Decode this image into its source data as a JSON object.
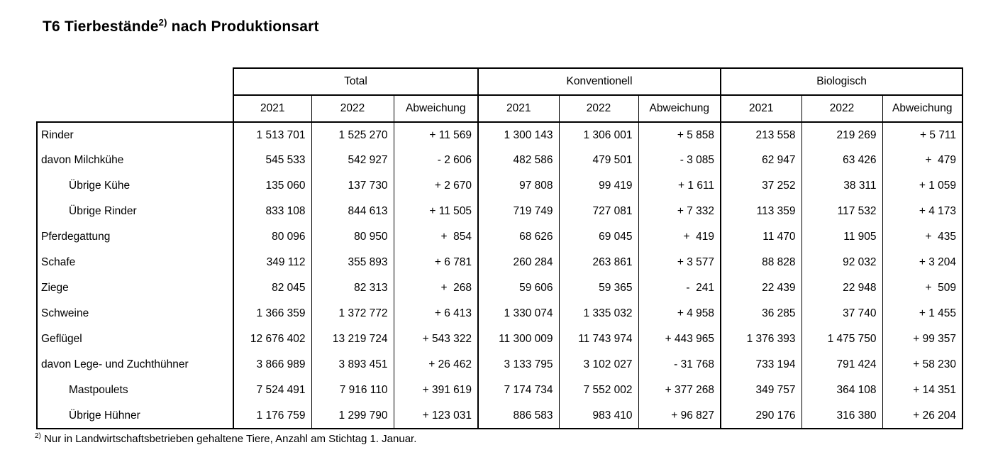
{
  "title": {
    "prefix": "T6 Tierbestände",
    "sup": "2)",
    "suffix": " nach Produktionsart"
  },
  "colors": {
    "text": "#000000",
    "background": "#ffffff",
    "border": "#000000"
  },
  "table": {
    "group_headers": [
      "Total",
      "Konventionell",
      "Biologisch"
    ],
    "sub_headers": [
      "2021",
      "2022",
      "Abweichung"
    ],
    "rows": [
      {
        "label": "Rinder",
        "indent": false,
        "values": [
          "1 513 701",
          "1 525 270",
          "+ 11 569",
          "1 300 143",
          "1 306 001",
          "+ 5 858",
          "213 558",
          "219 269",
          "+ 5 711"
        ]
      },
      {
        "label": "davon Milchkühe",
        "indent": false,
        "values": [
          "545 533",
          "542 927",
          "- 2 606",
          "482 586",
          "479 501",
          "- 3 085",
          "62 947",
          "63 426",
          "+  479"
        ]
      },
      {
        "label": "Übrige Kühe",
        "indent": true,
        "values": [
          "135 060",
          "137 730",
          "+ 2 670",
          "97 808",
          "99 419",
          "+ 1 611",
          "37 252",
          "38 311",
          "+ 1 059"
        ]
      },
      {
        "label": "Übrige Rinder",
        "indent": true,
        "values": [
          "833 108",
          "844 613",
          "+ 11 505",
          "719 749",
          "727 081",
          "+ 7 332",
          "113 359",
          "117 532",
          "+ 4 173"
        ]
      },
      {
        "label": "Pferdegattung",
        "indent": false,
        "values": [
          "80 096",
          "80 950",
          "+  854",
          "68 626",
          "69 045",
          "+  419",
          "11 470",
          "11 905",
          "+  435"
        ]
      },
      {
        "label": "Schafe",
        "indent": false,
        "values": [
          "349 112",
          "355 893",
          "+ 6 781",
          "260 284",
          "263 861",
          "+ 3 577",
          "88 828",
          "92 032",
          "+ 3 204"
        ]
      },
      {
        "label": "Ziege",
        "indent": false,
        "values": [
          "82 045",
          "82 313",
          "+  268",
          "59 606",
          "59 365",
          "-  241",
          "22 439",
          "22 948",
          "+  509"
        ]
      },
      {
        "label": "Schweine",
        "indent": false,
        "values": [
          "1 366 359",
          "1 372 772",
          "+ 6 413",
          "1 330 074",
          "1 335 032",
          "+ 4 958",
          "36 285",
          "37 740",
          "+ 1 455"
        ]
      },
      {
        "label": "Geflügel",
        "indent": false,
        "values": [
          "12 676 402",
          "13 219 724",
          "+ 543 322",
          "11 300 009",
          "11 743 974",
          "+ 443 965",
          "1 376 393",
          "1 475 750",
          "+ 99 357"
        ]
      },
      {
        "label": "davon Lege- und Zuchthühner",
        "indent": false,
        "values": [
          "3 866 989",
          "3 893 451",
          "+ 26 462",
          "3 133 795",
          "3 102 027",
          "- 31 768",
          "733 194",
          "791 424",
          "+ 58 230"
        ]
      },
      {
        "label": "Mastpoulets",
        "indent": true,
        "values": [
          "7 524 491",
          "7 916 110",
          "+ 391 619",
          "7 174 734",
          "7 552 002",
          "+ 377 268",
          "349 757",
          "364 108",
          "+ 14 351"
        ]
      },
      {
        "label": "Übrige Hühner",
        "indent": true,
        "values": [
          "1 176 759",
          "1 299 790",
          "+ 123 031",
          "886 583",
          "983 410",
          "+ 96 827",
          "290 176",
          "316 380",
          "+ 26 204"
        ]
      }
    ]
  },
  "footnote": {
    "sup": "2)",
    "text": " Nur in Landwirtschaftsbetrieben gehaltene Tiere, Anzahl am Stichtag 1. Januar."
  }
}
